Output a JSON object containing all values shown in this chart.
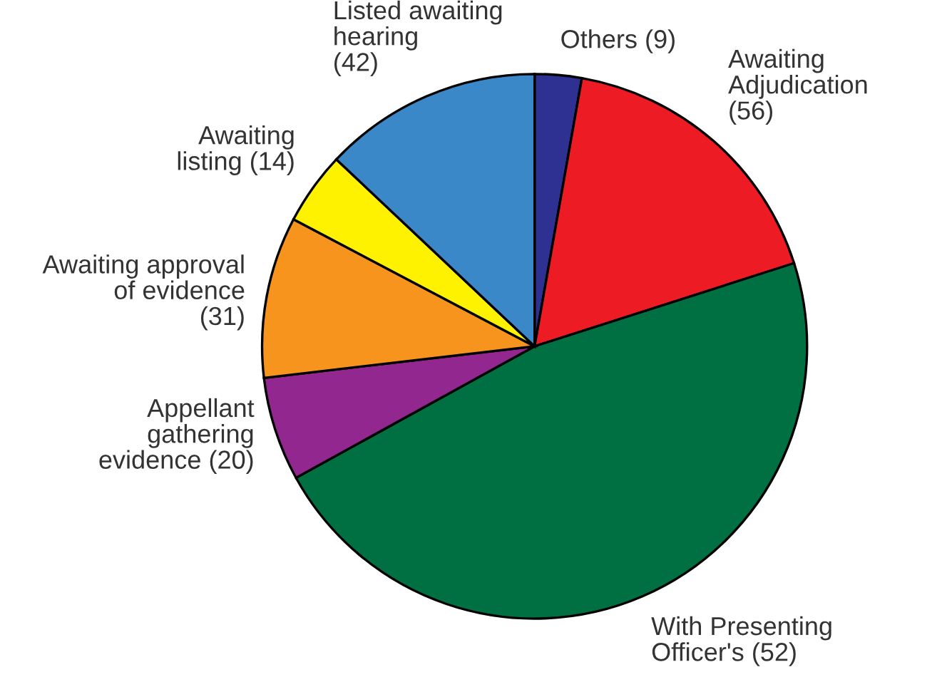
{
  "chart_data": {
    "type": "pie",
    "categories": [
      "Others (9)",
      "Awaiting\nAdjudication\n(56)",
      "With Presenting\nOfficer's (52)",
      "Appellant\ngathering\nevidence (20)",
      "Awaiting approval\nof evidence\n(31)",
      "Awaiting\nlisting (14)",
      "Listed awaiting\nhearing\n(42)"
    ],
    "values": [
      9,
      56,
      152,
      20,
      31,
      14,
      42
    ],
    "colors": [
      "#2e3192",
      "#ed1c24",
      "#007043",
      "#92278f",
      "#f7941d",
      "#fff200",
      "#3b88c8"
    ]
  }
}
